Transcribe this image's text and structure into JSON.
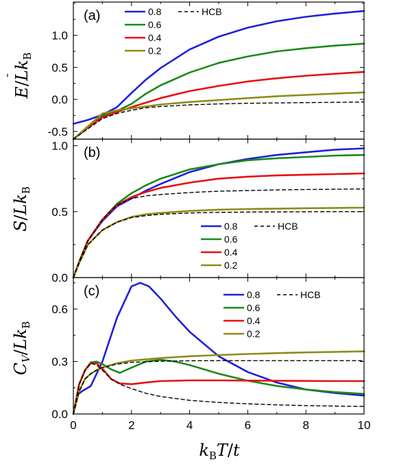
{
  "chart_data": [
    {
      "type": "line",
      "panel_label": "(a)",
      "ylabel": "Ē / Lk_B",
      "xlim": [
        0,
        10
      ],
      "ylim": [
        -0.62,
        1.52
      ],
      "yticks": [
        "-0.5",
        "0.0",
        "0.5",
        "1.0"
      ],
      "ytick_values": [
        -0.5,
        0.0,
        0.5,
        1.0
      ],
      "legend_position": "top-left",
      "series": [
        {
          "name": "0.8",
          "color": "#1f1fdc",
          "style": "solid",
          "x": [
            0,
            0.5,
            1,
            1.5,
            2,
            2.5,
            3,
            4,
            5,
            6,
            7,
            8,
            9,
            10
          ],
          "values": [
            -0.38,
            -0.32,
            -0.24,
            -0.12,
            0.1,
            0.31,
            0.49,
            0.78,
            0.98,
            1.12,
            1.22,
            1.29,
            1.34,
            1.38
          ]
        },
        {
          "name": "0.6",
          "color": "#1a8a1a",
          "style": "solid",
          "x": [
            0,
            0.5,
            1,
            1.5,
            2,
            2.5,
            3,
            4,
            5,
            6,
            7,
            8,
            9,
            10
          ],
          "values": [
            -0.62,
            -0.44,
            -0.26,
            -0.18,
            -0.07,
            0.09,
            0.22,
            0.42,
            0.57,
            0.67,
            0.75,
            0.8,
            0.84,
            0.87
          ]
        },
        {
          "name": "0.4",
          "color": "#e81010",
          "style": "solid",
          "x": [
            0,
            0.5,
            1,
            1.5,
            2,
            2.5,
            3,
            4,
            5,
            6,
            7,
            8,
            9,
            10
          ],
          "values": [
            -0.62,
            -0.44,
            -0.28,
            -0.2,
            -0.12,
            -0.05,
            0.02,
            0.13,
            0.21,
            0.28,
            0.33,
            0.37,
            0.4,
            0.43
          ]
        },
        {
          "name": "0.2",
          "color": "#8c8c18",
          "style": "solid",
          "x": [
            0,
            0.5,
            1,
            1.5,
            2,
            2.5,
            3,
            4,
            5,
            6,
            7,
            8,
            9,
            10
          ],
          "values": [
            -0.62,
            -0.42,
            -0.22,
            -0.17,
            -0.14,
            -0.11,
            -0.08,
            -0.04,
            -0.01,
            0.02,
            0.05,
            0.07,
            0.09,
            0.11
          ]
        },
        {
          "name": "HCB",
          "color": "#000000",
          "style": "dashed",
          "x": [
            0,
            0.5,
            1,
            1.5,
            2,
            2.5,
            3,
            4,
            5,
            6,
            7,
            8,
            9,
            10
          ],
          "values": [
            -0.62,
            -0.46,
            -0.3,
            -0.22,
            -0.17,
            -0.13,
            -0.11,
            -0.085,
            -0.07,
            -0.06,
            -0.055,
            -0.05,
            -0.045,
            -0.04
          ]
        }
      ]
    },
    {
      "type": "line",
      "panel_label": "(b)",
      "ylabel": "S / Lk_B",
      "xlim": [
        0,
        10
      ],
      "ylim": [
        0,
        1.05
      ],
      "yticks": [
        "0.0",
        "0.5",
        "1.0"
      ],
      "ytick_values": [
        0.0,
        0.5,
        1.0
      ],
      "legend_position": "bottom-right",
      "series": [
        {
          "name": "0.8",
          "color": "#1f1fdc",
          "style": "solid",
          "x": [
            0,
            0.2,
            0.5,
            1,
            1.5,
            2,
            2.5,
            3,
            4,
            5,
            6,
            7,
            8,
            9,
            10
          ],
          "values": [
            0,
            0.12,
            0.28,
            0.43,
            0.54,
            0.6,
            0.66,
            0.71,
            0.8,
            0.86,
            0.9,
            0.93,
            0.95,
            0.97,
            0.98
          ]
        },
        {
          "name": "0.6",
          "color": "#1a8a1a",
          "style": "solid",
          "x": [
            0,
            0.2,
            0.5,
            1,
            1.5,
            2,
            2.5,
            3,
            4,
            5,
            6,
            7,
            8,
            9,
            10
          ],
          "values": [
            0,
            0.12,
            0.28,
            0.44,
            0.56,
            0.64,
            0.7,
            0.75,
            0.82,
            0.86,
            0.89,
            0.905,
            0.915,
            0.925,
            0.93
          ]
        },
        {
          "name": "0.4",
          "color": "#e81010",
          "style": "solid",
          "x": [
            0,
            0.2,
            0.5,
            1,
            1.5,
            2,
            2.5,
            3,
            4,
            5,
            6,
            7,
            8,
            9,
            10
          ],
          "values": [
            0,
            0.12,
            0.28,
            0.44,
            0.55,
            0.61,
            0.65,
            0.68,
            0.72,
            0.75,
            0.765,
            0.775,
            0.78,
            0.785,
            0.79
          ]
        },
        {
          "name": "0.2",
          "color": "#8c8c18",
          "style": "solid",
          "x": [
            0,
            0.2,
            0.5,
            1,
            1.5,
            2,
            2.5,
            3,
            4,
            5,
            6,
            7,
            8,
            9,
            10
          ],
          "values": [
            0,
            0.11,
            0.25,
            0.36,
            0.42,
            0.46,
            0.48,
            0.49,
            0.505,
            0.515,
            0.52,
            0.523,
            0.526,
            0.528,
            0.53
          ]
        },
        {
          "name": "HCB",
          "color": "#000000",
          "style": "dashed",
          "x": [
            0,
            0.2,
            0.5,
            1,
            1.5,
            2,
            2.5,
            3,
            4,
            5,
            6,
            7,
            8,
            9,
            10
          ],
          "values": [
            0,
            0.12,
            0.28,
            0.44,
            0.55,
            0.6,
            0.62,
            0.63,
            0.645,
            0.655,
            0.66,
            0.665,
            0.668,
            0.67,
            0.672
          ]
        },
        {
          "name": "HCB",
          "color": "#000000",
          "style": "dashed",
          "x": [
            0,
            0.2,
            0.5,
            1,
            1.5,
            2,
            2.5,
            3,
            4,
            5,
            6,
            7,
            8,
            9,
            10
          ],
          "values": [
            0,
            0.11,
            0.25,
            0.36,
            0.42,
            0.455,
            0.47,
            0.48,
            0.49,
            0.495,
            0.497,
            0.498,
            0.499,
            0.5,
            0.5
          ]
        }
      ]
    },
    {
      "type": "line",
      "panel_label": "(c)",
      "ylabel": "C_V / Lk_B",
      "xlabel": "k_B T / t",
      "xlim": [
        0,
        10
      ],
      "ylim": [
        0,
        0.78
      ],
      "xticks": [
        "0",
        "2",
        "4",
        "6",
        "8",
        "10"
      ],
      "xtick_values": [
        0,
        2,
        4,
        6,
        8,
        10
      ],
      "yticks": [
        "0.0",
        "0.3",
        "0.6"
      ],
      "ytick_values": [
        0.0,
        0.3,
        0.6
      ],
      "legend_position": "top-right",
      "series": [
        {
          "name": "0.8",
          "color": "#1f1fdc",
          "style": "solid",
          "x": [
            0,
            0.15,
            0.3,
            0.6,
            1.0,
            1.5,
            2.0,
            2.3,
            2.6,
            3.0,
            3.5,
            4.0,
            5.0,
            6.0,
            7.0,
            8.0,
            9.0,
            10.0
          ],
          "values": [
            0,
            0.11,
            0.13,
            0.16,
            0.3,
            0.55,
            0.73,
            0.75,
            0.73,
            0.66,
            0.56,
            0.47,
            0.33,
            0.24,
            0.18,
            0.14,
            0.12,
            0.105
          ]
        },
        {
          "name": "0.6",
          "color": "#1a8a1a",
          "style": "solid",
          "x": [
            0,
            0.2,
            0.4,
            0.6,
            0.8,
            1.0,
            1.3,
            1.6,
            2.0,
            2.5,
            3.0,
            3.5,
            4.0,
            5.0,
            6.0,
            7.0,
            8.0,
            9.0,
            10.0
          ],
          "values": [
            0,
            0.17,
            0.25,
            0.295,
            0.3,
            0.285,
            0.255,
            0.235,
            0.265,
            0.3,
            0.31,
            0.3,
            0.28,
            0.23,
            0.19,
            0.16,
            0.14,
            0.125,
            0.115
          ]
        },
        {
          "name": "0.4",
          "color": "#e81010",
          "style": "solid",
          "x": [
            0,
            0.2,
            0.4,
            0.6,
            0.8,
            1.0,
            1.3,
            1.6,
            2.0,
            2.5,
            3.0,
            4.0,
            5.0,
            6.0,
            7.0,
            8.0,
            9.0,
            10.0
          ],
          "values": [
            0,
            0.17,
            0.25,
            0.29,
            0.29,
            0.26,
            0.2,
            0.175,
            0.17,
            0.18,
            0.188,
            0.192,
            0.192,
            0.191,
            0.19,
            0.189,
            0.188,
            0.188
          ]
        },
        {
          "name": "0.2",
          "color": "#8c8c18",
          "style": "solid",
          "x": [
            0,
            0.2,
            0.4,
            0.6,
            0.8,
            1.0,
            1.5,
            2.0,
            3.0,
            4.0,
            5.0,
            6.0,
            7.0,
            8.0,
            9.0,
            10.0
          ],
          "values": [
            0,
            0.13,
            0.2,
            0.23,
            0.25,
            0.265,
            0.29,
            0.305,
            0.32,
            0.33,
            0.337,
            0.343,
            0.348,
            0.352,
            0.355,
            0.358
          ]
        },
        {
          "name": "HCB",
          "color": "#000000",
          "style": "dashed",
          "x": [
            0,
            0.2,
            0.4,
            0.6,
            0.8,
            1.0,
            1.5,
            2.0,
            3.0,
            4.0,
            5.0,
            6.0,
            7.0,
            8.0,
            9.0,
            10.0
          ],
          "values": [
            0,
            0.13,
            0.2,
            0.23,
            0.25,
            0.265,
            0.285,
            0.295,
            0.302,
            0.304,
            0.305,
            0.305,
            0.305,
            0.305,
            0.305,
            0.305
          ]
        },
        {
          "name": "HCB",
          "color": "#000000",
          "style": "dashed",
          "x": [
            0,
            0.2,
            0.4,
            0.6,
            0.8,
            1.0,
            1.3,
            1.6,
            2.0,
            2.5,
            3.0,
            4.0,
            5.0,
            6.0,
            7.0,
            8.0,
            9.0,
            10.0
          ],
          "values": [
            0,
            0.17,
            0.25,
            0.29,
            0.28,
            0.25,
            0.2,
            0.17,
            0.145,
            0.118,
            0.1,
            0.078,
            0.066,
            0.058,
            0.052,
            0.048,
            0.045,
            0.043
          ]
        }
      ]
    }
  ],
  "legend": {
    "entries": [
      {
        "label": "0.8",
        "color": "#1f1fdc",
        "style": "solid"
      },
      {
        "label": "0.6",
        "color": "#1a8a1a",
        "style": "solid"
      },
      {
        "label": "0.4",
        "color": "#e81010",
        "style": "solid"
      },
      {
        "label": "0.2",
        "color": "#8c8c18",
        "style": "solid"
      },
      {
        "label": "HCB",
        "color": "#000000",
        "style": "dashed"
      }
    ]
  }
}
